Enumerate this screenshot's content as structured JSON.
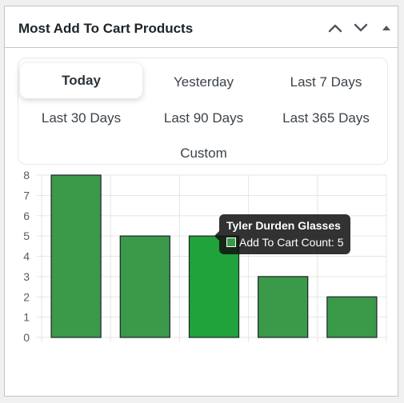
{
  "widget": {
    "title": "Most Add To Cart Products",
    "controls": [
      "move-up",
      "move-down",
      "toggle"
    ]
  },
  "tabs": [
    {
      "label": "Today",
      "active": true
    },
    {
      "label": "Yesterday",
      "active": false
    },
    {
      "label": "Last 7 Days",
      "active": false
    },
    {
      "label": "Last 30 Days",
      "active": false
    },
    {
      "label": "Last 90 Days",
      "active": false
    },
    {
      "label": "Last 365 Days",
      "active": false
    },
    {
      "label": "Custom",
      "active": false
    }
  ],
  "tooltip": {
    "title": "Tyler Durden Glasses",
    "line": "Add To Cart Count: 5",
    "swatch_color": "#3a9a4a"
  },
  "colors": {
    "bar_fill": "#3a9a4a",
    "bar_highlight": "#1fa33a",
    "bar_border": "#1d2327",
    "grid": "#e5e5e5"
  },
  "chart_data": {
    "type": "bar",
    "categories": [
      "",
      "",
      "",
      "",
      ""
    ],
    "values": [
      8,
      5,
      5,
      3,
      2
    ],
    "highlighted_index": 2,
    "ylim": [
      0,
      8
    ],
    "yticks": [
      0,
      1,
      2,
      3,
      4,
      5,
      6,
      7,
      8
    ],
    "grid": true,
    "title": "",
    "xlabel": "",
    "ylabel": ""
  }
}
